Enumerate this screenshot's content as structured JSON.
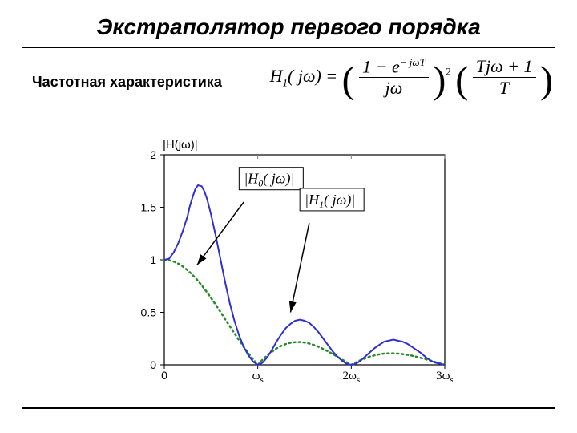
{
  "title": "Экстраполятор первого порядка",
  "subtitle": "Частотная характеристика",
  "formula": {
    "lhs_H": "H",
    "lhs_sub": "1",
    "lhs_arg": "( jω) =",
    "frac1_num": "1 − e",
    "frac1_num_exp": "− jωT",
    "frac1_den": "jω",
    "exp2": "2",
    "frac2_num": "Tjω + 1",
    "frac2_den": "T"
  },
  "chart": {
    "ylabel": "|H(jω)|",
    "xlim": [
      0,
      3
    ],
    "ylim": [
      0,
      2
    ],
    "yticks": [
      0,
      0.5,
      1,
      1.5,
      2
    ],
    "xticks": [
      0,
      1,
      2,
      3
    ],
    "xtick_labels": [
      "0",
      "ω",
      "2ω",
      "3ω"
    ],
    "xtick_sub": "s",
    "colors": {
      "axis": "#000000",
      "grid": "#999999",
      "h0": "#2a8a2a",
      "h1": "#3030d0",
      "arrow": "#000000",
      "tick": "#808080"
    },
    "h0_label": "|H₀(jω)|",
    "h1_label": "|H₁(jω)|",
    "h0_box": {
      "H": "H",
      "sub": "0",
      "arg": "( jω)"
    },
    "h1_box": {
      "H": "H",
      "sub": "1",
      "arg": "( jω)"
    },
    "series_h0": [
      [
        0.0,
        1.0
      ],
      [
        0.05,
        0.996
      ],
      [
        0.1,
        0.984
      ],
      [
        0.15,
        0.963
      ],
      [
        0.2,
        0.935
      ],
      [
        0.25,
        0.9
      ],
      [
        0.3,
        0.858
      ],
      [
        0.35,
        0.81
      ],
      [
        0.4,
        0.757
      ],
      [
        0.45,
        0.699
      ],
      [
        0.5,
        0.637
      ],
      [
        0.55,
        0.572
      ],
      [
        0.6,
        0.505
      ],
      [
        0.65,
        0.436
      ],
      [
        0.7,
        0.368
      ],
      [
        0.75,
        0.3
      ],
      [
        0.8,
        0.234
      ],
      [
        0.85,
        0.17
      ],
      [
        0.9,
        0.109
      ],
      [
        0.95,
        0.053
      ],
      [
        1.0,
        0.0
      ],
      [
        1.05,
        0.048
      ],
      [
        1.1,
        0.089
      ],
      [
        1.15,
        0.124
      ],
      [
        1.2,
        0.156
      ],
      [
        1.25,
        0.18
      ],
      [
        1.3,
        0.198
      ],
      [
        1.35,
        0.21
      ],
      [
        1.4,
        0.216
      ],
      [
        1.45,
        0.217
      ],
      [
        1.5,
        0.212
      ],
      [
        1.55,
        0.203
      ],
      [
        1.6,
        0.189
      ],
      [
        1.65,
        0.172
      ],
      [
        1.7,
        0.151
      ],
      [
        1.75,
        0.129
      ],
      [
        1.8,
        0.104
      ],
      [
        1.85,
        0.078
      ],
      [
        1.9,
        0.051
      ],
      [
        1.95,
        0.025
      ],
      [
        2.0,
        0.0
      ],
      [
        2.05,
        0.023
      ],
      [
        2.1,
        0.045
      ],
      [
        2.15,
        0.063
      ],
      [
        2.2,
        0.079
      ],
      [
        2.25,
        0.09
      ],
      [
        2.3,
        0.1
      ],
      [
        2.35,
        0.107
      ],
      [
        2.4,
        0.11
      ],
      [
        2.45,
        0.109
      ],
      [
        2.5,
        0.107
      ],
      [
        2.55,
        0.102
      ],
      [
        2.6,
        0.095
      ],
      [
        2.65,
        0.087
      ],
      [
        2.7,
        0.076
      ],
      [
        2.75,
        0.064
      ],
      [
        2.8,
        0.053
      ],
      [
        2.85,
        0.04
      ],
      [
        2.9,
        0.026
      ],
      [
        2.95,
        0.013
      ],
      [
        3.0,
        0.0
      ]
    ],
    "series_h1": [
      [
        0.0,
        1.0
      ],
      [
        0.05,
        1.01
      ],
      [
        0.1,
        1.07
      ],
      [
        0.15,
        1.16
      ],
      [
        0.2,
        1.28
      ],
      [
        0.25,
        1.42
      ],
      [
        0.27,
        1.5
      ],
      [
        0.3,
        1.59
      ],
      [
        0.33,
        1.67
      ],
      [
        0.36,
        1.71
      ],
      [
        0.4,
        1.7
      ],
      [
        0.43,
        1.65
      ],
      [
        0.46,
        1.57
      ],
      [
        0.5,
        1.43
      ],
      [
        0.55,
        1.23
      ],
      [
        0.6,
        1.01
      ],
      [
        0.65,
        0.79
      ],
      [
        0.7,
        0.59
      ],
      [
        0.75,
        0.42
      ],
      [
        0.8,
        0.28
      ],
      [
        0.85,
        0.17
      ],
      [
        0.9,
        0.09
      ],
      [
        0.95,
        0.03
      ],
      [
        1.0,
        0.0
      ],
      [
        1.05,
        0.02
      ],
      [
        1.1,
        0.07
      ],
      [
        1.15,
        0.14
      ],
      [
        1.2,
        0.22
      ],
      [
        1.25,
        0.29
      ],
      [
        1.3,
        0.35
      ],
      [
        1.35,
        0.39
      ],
      [
        1.4,
        0.42
      ],
      [
        1.45,
        0.43
      ],
      [
        1.5,
        0.42
      ],
      [
        1.55,
        0.4
      ],
      [
        1.6,
        0.36
      ],
      [
        1.65,
        0.31
      ],
      [
        1.7,
        0.25
      ],
      [
        1.75,
        0.19
      ],
      [
        1.8,
        0.13
      ],
      [
        1.85,
        0.08
      ],
      [
        1.9,
        0.04
      ],
      [
        1.95,
        0.01
      ],
      [
        2.0,
        0.0
      ],
      [
        2.05,
        0.01
      ],
      [
        2.1,
        0.04
      ],
      [
        2.15,
        0.08
      ],
      [
        2.2,
        0.12
      ],
      [
        2.25,
        0.16
      ],
      [
        2.3,
        0.19
      ],
      [
        2.35,
        0.22
      ],
      [
        2.4,
        0.23
      ],
      [
        2.45,
        0.24
      ],
      [
        2.5,
        0.23
      ],
      [
        2.55,
        0.22
      ],
      [
        2.6,
        0.2
      ],
      [
        2.65,
        0.17
      ],
      [
        2.7,
        0.14
      ],
      [
        2.75,
        0.11
      ],
      [
        2.8,
        0.07
      ],
      [
        2.85,
        0.04
      ],
      [
        2.9,
        0.02
      ],
      [
        2.95,
        0.01
      ],
      [
        3.0,
        0.0
      ]
    ]
  }
}
